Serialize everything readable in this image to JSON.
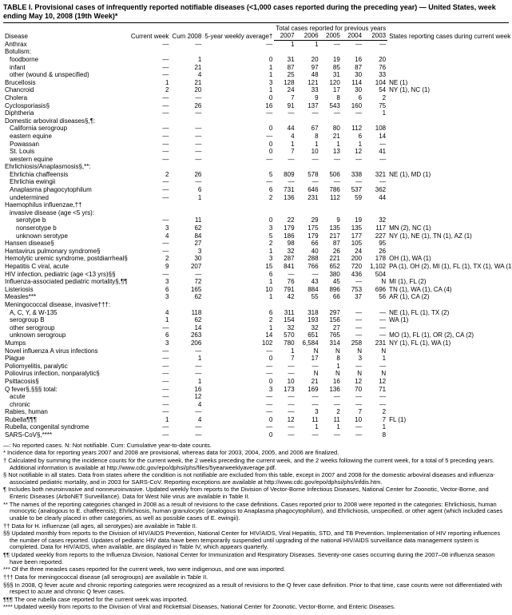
{
  "title": "TABLE I. Provisional cases of infrequently reported notifiable diseases (<1,000 cases reported during the preceding year) — United States, week ending May 10, 2008 (19th Week)*",
  "headers": {
    "disease": "Disease",
    "current_week": "Current week",
    "cum_2008": "Cum 2008",
    "five_year_avg": "5-year weekly average†",
    "prev_group": "Total cases reported for previous years",
    "y2007": "2007",
    "y2006": "2006",
    "y2005": "2005",
    "y2004": "2004",
    "y2003": "2003",
    "states": "States reporting cases during current week (No.)"
  },
  "rows": [
    {
      "d": "Anthrax",
      "i": 0,
      "c": [
        "—",
        "—",
        "—",
        "1",
        "1",
        "—",
        "—",
        "—",
        ""
      ]
    },
    {
      "d": "Botulism:",
      "i": 0,
      "c": [
        "",
        "",
        "",
        "",
        "",
        "",
        "",
        "",
        ""
      ]
    },
    {
      "d": "foodborne",
      "i": 1,
      "c": [
        "—",
        "1",
        "0",
        "31",
        "20",
        "19",
        "16",
        "20",
        ""
      ]
    },
    {
      "d": "infant",
      "i": 1,
      "c": [
        "—",
        "21",
        "1",
        "87",
        "97",
        "85",
        "87",
        "76",
        ""
      ]
    },
    {
      "d": "other (wound & unspecified)",
      "i": 1,
      "c": [
        "—",
        "4",
        "1",
        "25",
        "48",
        "31",
        "30",
        "33",
        ""
      ]
    },
    {
      "d": "Brucellosis",
      "i": 0,
      "c": [
        "1",
        "21",
        "3",
        "128",
        "121",
        "120",
        "114",
        "104",
        "NE (1)"
      ]
    },
    {
      "d": "Chancroid",
      "i": 0,
      "c": [
        "2",
        "20",
        "1",
        "24",
        "33",
        "17",
        "30",
        "54",
        "NY (1), NC (1)"
      ]
    },
    {
      "d": "Cholera",
      "i": 0,
      "c": [
        "—",
        "—",
        "0",
        "7",
        "9",
        "8",
        "6",
        "2",
        ""
      ]
    },
    {
      "d": "Cyclosporiasis§",
      "i": 0,
      "c": [
        "—",
        "26",
        "16",
        "91",
        "137",
        "543",
        "160",
        "75",
        ""
      ]
    },
    {
      "d": "Diphtheria",
      "i": 0,
      "c": [
        "—",
        "—",
        "—",
        "—",
        "—",
        "—",
        "—",
        "1",
        ""
      ]
    },
    {
      "d": "Domestic arboviral diseases§,¶:",
      "i": 0,
      "c": [
        "",
        "",
        "",
        "",
        "",
        "",
        "",
        "",
        ""
      ]
    },
    {
      "d": "California serogroup",
      "i": 1,
      "c": [
        "—",
        "—",
        "0",
        "44",
        "67",
        "80",
        "112",
        "108",
        ""
      ]
    },
    {
      "d": "eastern equine",
      "i": 1,
      "c": [
        "—",
        "—",
        "—",
        "4",
        "8",
        "21",
        "6",
        "14",
        ""
      ]
    },
    {
      "d": "Powassan",
      "i": 1,
      "c": [
        "—",
        "—",
        "0",
        "1",
        "1",
        "1",
        "1",
        "—",
        ""
      ]
    },
    {
      "d": "St. Louis",
      "i": 1,
      "c": [
        "—",
        "—",
        "0",
        "7",
        "10",
        "13",
        "12",
        "41",
        ""
      ]
    },
    {
      "d": "western equine",
      "i": 1,
      "c": [
        "—",
        "—",
        "—",
        "—",
        "—",
        "—",
        "—",
        "—",
        ""
      ]
    },
    {
      "d": "Ehrlichiosis/Anaplasmosis§,**:",
      "i": 0,
      "c": [
        "",
        "",
        "",
        "",
        "",
        "",
        "",
        "",
        ""
      ]
    },
    {
      "d": "Ehrlichia chaffeensis",
      "i": 1,
      "c": [
        "2",
        "26",
        "5",
        "809",
        "578",
        "506",
        "338",
        "321",
        "NE (1), MD (1)"
      ]
    },
    {
      "d": "Ehrlichia ewingii",
      "i": 1,
      "c": [
        "—",
        "—",
        "—",
        "—",
        "—",
        "—",
        "—",
        "—",
        ""
      ]
    },
    {
      "d": "Anaplasma phagocytophilum",
      "i": 1,
      "c": [
        "—",
        "6",
        "6",
        "731",
        "646",
        "786",
        "537",
        "362",
        ""
      ]
    },
    {
      "d": "undetermined",
      "i": 1,
      "c": [
        "—",
        "1",
        "2",
        "136",
        "231",
        "112",
        "59",
        "44",
        ""
      ]
    },
    {
      "d": "Haemophilus influenzae,††",
      "i": 0,
      "c": [
        "",
        "",
        "",
        "",
        "",
        "",
        "",
        "",
        ""
      ]
    },
    {
      "d": "invasive disease (age <5 yrs):",
      "i": 1,
      "c": [
        "",
        "",
        "",
        "",
        "",
        "",
        "",
        "",
        ""
      ]
    },
    {
      "d": "serotype b",
      "i": 2,
      "c": [
        "—",
        "11",
        "0",
        "22",
        "29",
        "9",
        "19",
        "32",
        ""
      ]
    },
    {
      "d": "nonserotype b",
      "i": 2,
      "c": [
        "3",
        "62",
        "3",
        "179",
        "175",
        "135",
        "135",
        "117",
        "MN (2), NC (1)"
      ]
    },
    {
      "d": "unknown serotype",
      "i": 2,
      "c": [
        "4",
        "84",
        "5",
        "186",
        "179",
        "217",
        "177",
        "227",
        "NY (1), NE (1), TN (1), AZ (1)"
      ]
    },
    {
      "d": "Hansen disease§",
      "i": 0,
      "c": [
        "—",
        "27",
        "2",
        "98",
        "66",
        "87",
        "105",
        "95",
        ""
      ]
    },
    {
      "d": "Hantavirus pulmonary syndrome§",
      "i": 0,
      "c": [
        "—",
        "3",
        "1",
        "32",
        "40",
        "26",
        "24",
        "26",
        ""
      ]
    },
    {
      "d": "Hemolytic uremic syndrome, postdiarrheal§",
      "i": 0,
      "c": [
        "2",
        "30",
        "3",
        "287",
        "288",
        "221",
        "200",
        "178",
        "OH (1), WA (1)"
      ]
    },
    {
      "d": "Hepatitis C viral, acute",
      "i": 0,
      "c": [
        "9",
        "207",
        "15",
        "841",
        "766",
        "652",
        "720",
        "1,102",
        "PA (1), OH (2), MI (1), FL (1), TX (1), WA (1), OR (2)"
      ]
    },
    {
      "d": "HIV infection, pediatric (age <13 yrs)§§",
      "i": 0,
      "c": [
        "—",
        "—",
        "6",
        "—",
        "—",
        "380",
        "436",
        "504",
        ""
      ]
    },
    {
      "d": "Influenza-associated pediatric mortality§,¶¶",
      "i": 0,
      "c": [
        "3",
        "72",
        "1",
        "76",
        "43",
        "45",
        "—",
        "N",
        "MI (1), FL (2)"
      ]
    },
    {
      "d": "Listeriosis",
      "i": 0,
      "c": [
        "6",
        "165",
        "10",
        "791",
        "884",
        "896",
        "753",
        "696",
        "TN (1), WA (1), CA (4)"
      ]
    },
    {
      "d": "Measles***",
      "i": 0,
      "c": [
        "3",
        "62",
        "1",
        "42",
        "55",
        "66",
        "37",
        "56",
        "AR (1), CA (2)"
      ]
    },
    {
      "d": "Meningococcal disease, invasive†††:",
      "i": 0,
      "c": [
        "",
        "",
        "",
        "",
        "",
        "",
        "",
        "",
        ""
      ]
    },
    {
      "d": "A, C, Y, & W-135",
      "i": 1,
      "c": [
        "4",
        "118",
        "6",
        "311",
        "318",
        "297",
        "—",
        "—",
        "NE (1), FL (1), TX (2)"
      ]
    },
    {
      "d": "serogroup B",
      "i": 1,
      "c": [
        "1",
        "62",
        "2",
        "154",
        "193",
        "156",
        "—",
        "—",
        "WA (1)"
      ]
    },
    {
      "d": "other serogroup",
      "i": 1,
      "c": [
        "—",
        "14",
        "1",
        "32",
        "32",
        "27",
        "—",
        "—",
        ""
      ]
    },
    {
      "d": "unknown serogroup",
      "i": 1,
      "c": [
        "6",
        "263",
        "14",
        "570",
        "651",
        "765",
        "—",
        "—",
        "MO (1), FL (1), OR (2), CA (2)"
      ]
    },
    {
      "d": "Mumps",
      "i": 0,
      "c": [
        "3",
        "206",
        "102",
        "780",
        "6,584",
        "314",
        "258",
        "231",
        "NY (1), FL (1), WA (1)"
      ]
    },
    {
      "d": "Novel influenza A virus infections",
      "i": 0,
      "c": [
        "—",
        "—",
        "—",
        "1",
        "N",
        "N",
        "N",
        "N",
        ""
      ]
    },
    {
      "d": "Plague",
      "i": 0,
      "c": [
        "—",
        "1",
        "0",
        "7",
        "17",
        "8",
        "3",
        "1",
        ""
      ]
    },
    {
      "d": "Poliomyelitis, paralytic",
      "i": 0,
      "c": [
        "—",
        "—",
        "—",
        "—",
        "—",
        "1",
        "—",
        "—",
        ""
      ]
    },
    {
      "d": "Poliovirus infection, nonparalytic§",
      "i": 0,
      "c": [
        "—",
        "—",
        "—",
        "—",
        "N",
        "N",
        "N",
        "N",
        ""
      ]
    },
    {
      "d": "Psittacosis§",
      "i": 0,
      "c": [
        "—",
        "1",
        "0",
        "10",
        "21",
        "16",
        "12",
        "12",
        ""
      ]
    },
    {
      "d": "Q fever§,§§§ total:",
      "i": 0,
      "c": [
        "—",
        "16",
        "3",
        "173",
        "169",
        "136",
        "70",
        "71",
        ""
      ]
    },
    {
      "d": "acute",
      "i": 1,
      "c": [
        "—",
        "12",
        "—",
        "—",
        "—",
        "—",
        "—",
        "—",
        ""
      ]
    },
    {
      "d": "chronic",
      "i": 1,
      "c": [
        "—",
        "4",
        "—",
        "—",
        "—",
        "—",
        "—",
        "—",
        ""
      ]
    },
    {
      "d": "Rabies, human",
      "i": 0,
      "c": [
        "—",
        "—",
        "—",
        "—",
        "3",
        "2",
        "7",
        "2",
        ""
      ]
    },
    {
      "d": "Rubella¶¶¶",
      "i": 0,
      "c": [
        "1",
        "4",
        "0",
        "12",
        "11",
        "11",
        "10",
        "7",
        "FL (1)"
      ]
    },
    {
      "d": "Rubella, congenital syndrome",
      "i": 0,
      "c": [
        "—",
        "—",
        "—",
        "—",
        "1",
        "1",
        "—",
        "1",
        ""
      ]
    },
    {
      "d": "SARS-CoV§,****",
      "i": 0,
      "c": [
        "—",
        "—",
        "0",
        "—",
        "—",
        "—",
        "—",
        "8",
        ""
      ]
    }
  ],
  "footnotes": [
    "—: No reported cases.    N: Not notifiable.    Cum: Cumulative year-to-date counts.",
    "* Incidence data for reporting years 2007 and 2008 are provisional, whereas data for 2003, 2004, 2005, and 2006 are finalized.",
    "† Calculated by summing the incidence counts for the current week, the 2 weeks preceding the current week, and the 2 weeks following the current week, for a total of 5 preceding years. Additional information is available at http://www.cdc.gov/epo/dphsi/phs/files/5yearweeklyaverage.pdf.",
    "§ Not notifiable in all states. Data from states where the condition is not notifiable are excluded from this table, except in 2007 and 2008 for the domestic arboviral diseases and influenza-associated pediatric mortality, and in 2003 for SARS-CoV. Reporting exceptions are available at http://www.cdc.gov/epo/dphsi/phs/infdis.htm.",
    "¶ Includes both neuroinvasive and nonneuroinvasive. Updated weekly from reports to the Division of Vector-Borne Infectious Diseases, National Center for Zoonotic, Vector-Borne, and Enteric Diseases (ArboNET Surveillance). Data for West Nile virus are available in Table II.",
    "** The names of the reporting categories changed in 2008 as a result of revisions to the case definitions. Cases reported prior to 2008 were reported in the categories: Ehrlichiosis, human monocytic (analogous to E. chaffeensis); Ehrlichiosis, human granulocytic (analogous to Anaplasma phagocytophilum), and Ehrlichiosis, unspecified, or other agent (which included cases unable to be clearly placed in other categories, as well as possible cases of E. ewingii).",
    "†† Data for H. influenzae (all ages, all serotypes) are available in Table II.",
    "§§ Updated monthly from reports to the Division of HIV/AIDS Prevention, National Center for HIV/AIDS, Viral Hepatitis, STD, and TB Prevention. Implementation of HIV reporting influences the number of cases reported. Updates of pediatric HIV data have been temporarily suspended until upgrading of the national HIV/AIDS surveillance data management system is completed. Data for HIV/AIDS, when available, are displayed in Table IV, which appears quarterly.",
    "¶¶ Updated weekly from reports to the Influenza Division, National Center for Immunization and Respiratory Diseases. Seventy-one cases occurring during the 2007–08 influenza season have been reported.",
    "*** Of the three measles cases reported for the current week, two were indigenous, and one was imported.",
    "††† Data for meningococcal disease (all serogroups) are available in Table II.",
    "§§§ In 2008, Q fever acute and chronic reporting categories were recognized as a result of revisions to the Q fever case definition. Prior to that time, case counts were not differentiated with respect to acute and chronic Q fever cases.",
    "¶¶¶ The one rubella case reported for the current week was imported.",
    "**** Updated weekly from reports to the Division of Viral and Rickettsial Diseases, National Center for Zoonotic, Vector-Borne, and Enteric Diseases."
  ]
}
